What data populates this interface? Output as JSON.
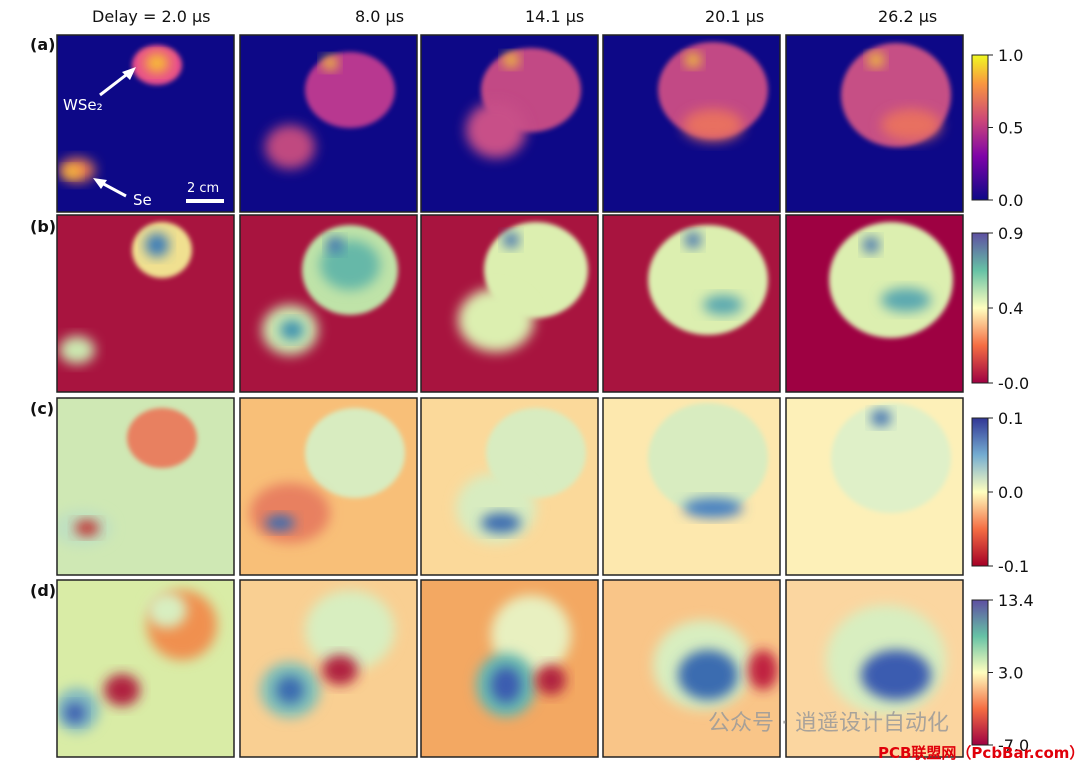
{
  "figure": {
    "column_headers": [
      "Delay = 2.0 μs",
      "8.0 μs",
      "14.1 μs",
      "20.1 μs",
      "26.2 μs"
    ],
    "row_labels": [
      "(a)",
      "(b)",
      "(c)",
      "(d)"
    ],
    "colorbars": [
      {
        "ticks": [
          "1.0",
          "0.5",
          "0.0"
        ]
      },
      {
        "ticks": [
          "0.9",
          "0.4",
          "-0.0"
        ]
      },
      {
        "ticks": [
          "0.1",
          "0.0",
          "-0.1"
        ]
      },
      {
        "ticks": [
          "13.4",
          "3.0",
          "-7.0"
        ]
      }
    ],
    "annotations": {
      "wse2": "WSe₂",
      "se": "Se",
      "scale_bar": "2 cm"
    },
    "watermarks": {
      "wechat": "公众号 · 逍遥设计自动化",
      "site": "PCB联盟网（PcbBar.com）"
    }
  }
}
